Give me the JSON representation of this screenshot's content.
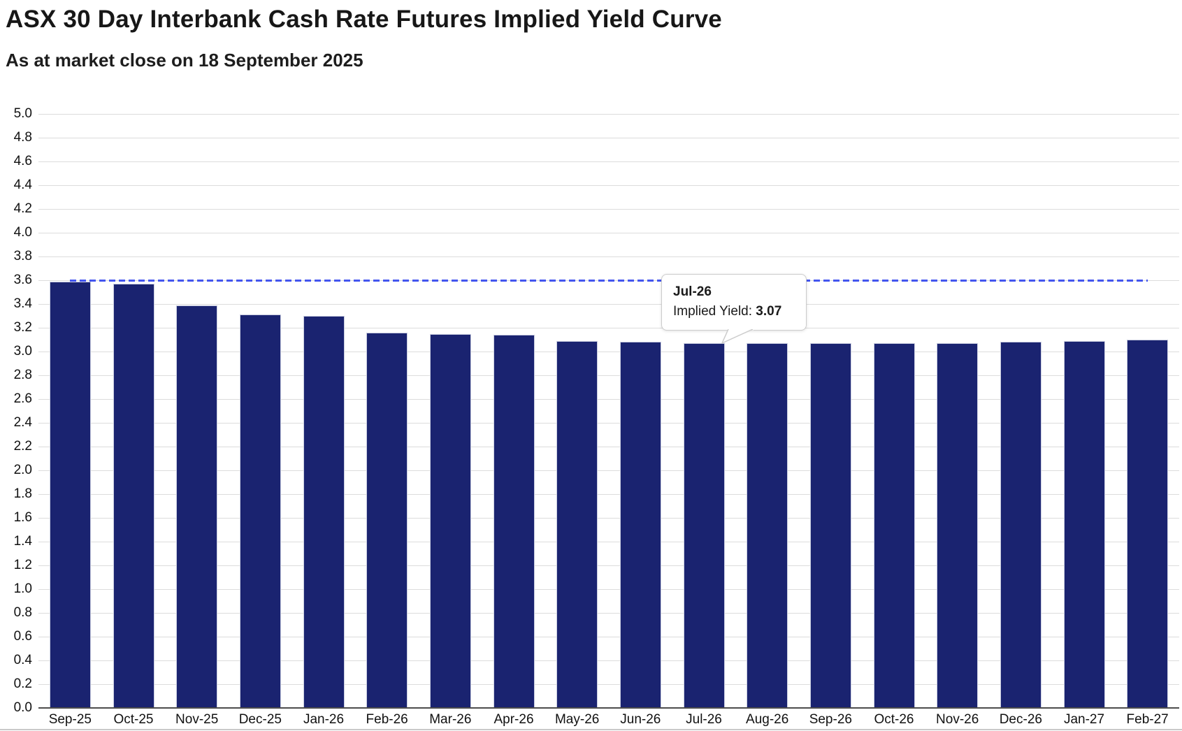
{
  "header": {
    "title": "ASX 30 Day Interbank Cash Rate Futures Implied Yield Curve",
    "subtitle": "As at market close on 18 September 2025"
  },
  "chart_data": {
    "type": "bar",
    "title": "ASX 30 Day Interbank Cash Rate Futures Implied Yield Curve",
    "subtitle": "As at market close on 18 September 2025",
    "categories": [
      "Sep-25",
      "Oct-25",
      "Nov-25",
      "Dec-25",
      "Jan-26",
      "Feb-26",
      "Mar-26",
      "Apr-26",
      "May-26",
      "Jun-26",
      "Jul-26",
      "Aug-26",
      "Sep-26",
      "Oct-26",
      "Nov-26",
      "Dec-26",
      "Jan-27",
      "Feb-27"
    ],
    "series": [
      {
        "name": "Implied Yield",
        "values": [
          3.59,
          3.57,
          3.39,
          3.31,
          3.3,
          3.16,
          3.15,
          3.14,
          3.09,
          3.08,
          3.07,
          3.07,
          3.07,
          3.07,
          3.07,
          3.08,
          3.09,
          3.1
        ]
      }
    ],
    "xlabel": "",
    "ylabel": "",
    "ylim": [
      0.0,
      5.0
    ],
    "ytick_step": 0.2,
    "grid": true,
    "legend": "none",
    "reference_line": {
      "value": 3.6,
      "style": "dashed"
    },
    "highlighted_category": "Jul-26",
    "tooltip": {
      "title": "Jul-26",
      "label": "Implied Yield:",
      "value": "3.07"
    }
  },
  "colors": {
    "bar_fill": "#1a2370",
    "bar_border": "#c9cde0",
    "reference_line": "#4355ef",
    "gridline": "#dcdcdc",
    "axis_line": "#4d4d4d",
    "text": "#1a1a1a",
    "tooltip_bg": "#ffffff",
    "tooltip_border": "#cccccc"
  }
}
